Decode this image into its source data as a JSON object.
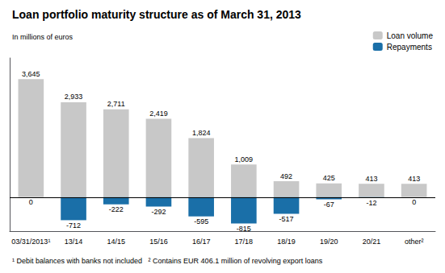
{
  "chart_data": {
    "type": "bar",
    "title": "Loan portfolio maturity structure as of March 31, 2013",
    "subtitle": "In millions of euros",
    "annotations": [
      "¹ Debit balances with banks not included   ² Contains EUR 406.1 million of revolving export loans"
    ],
    "categories": [
      "03/31/2013¹",
      "13/14",
      "14/15",
      "15/16",
      "16/17",
      "17/18",
      "18/19",
      "19/20",
      "20/21",
      "other²"
    ],
    "series": [
      {
        "name": "Loan volume",
        "color": "#c8c8c8",
        "values": [
          3645,
          2933,
          2711,
          2419,
          1824,
          1009,
          492,
          425,
          413,
          413
        ],
        "value_labels": [
          "3,645",
          "2,933",
          "2,711",
          "2,419",
          "1,824",
          "1,009",
          "492",
          "425",
          "413",
          "413"
        ]
      },
      {
        "name": "Repayments",
        "color": "#1a6fa8",
        "values": [
          0,
          -712,
          -222,
          -292,
          -595,
          -815,
          -517,
          -67,
          -12,
          0
        ]
      }
    ],
    "ylim": [
      -1050,
      4300
    ],
    "grid": false,
    "legend": "upper right",
    "data_labels": true,
    "tick_labels": "x"
  }
}
